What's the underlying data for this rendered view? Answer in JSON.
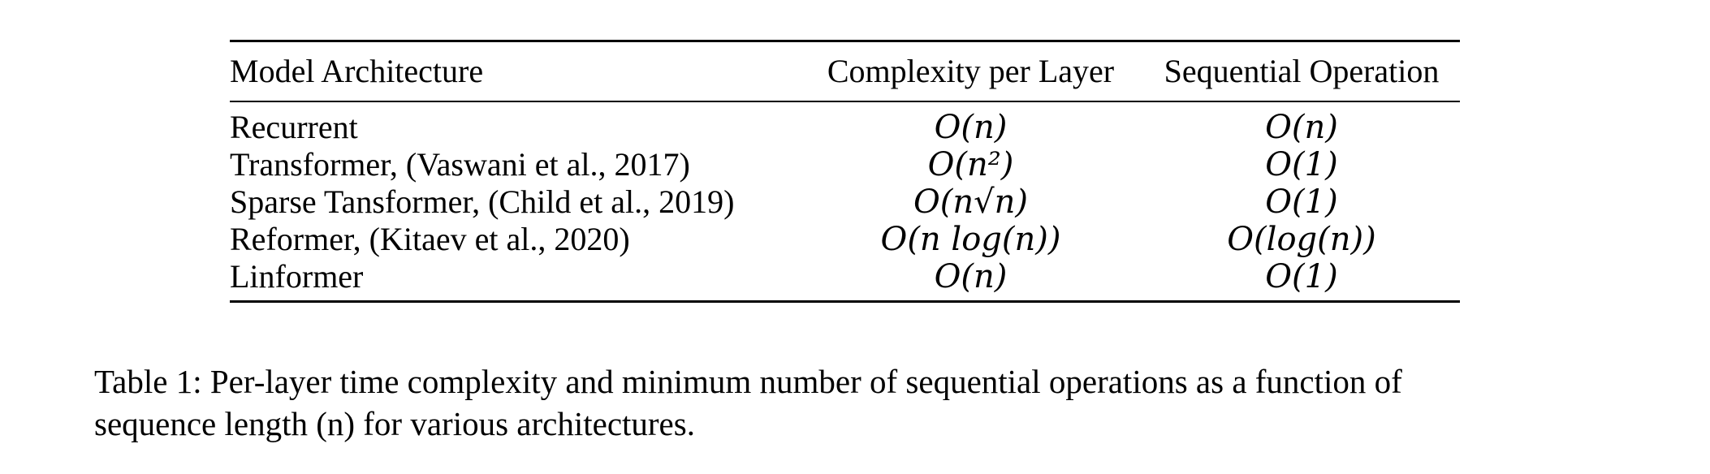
{
  "table": {
    "headers": {
      "model": "Model Architecture",
      "complexity": "Complexity per Layer",
      "sequential": "Sequential Operation"
    },
    "rows": [
      {
        "model": "Recurrent",
        "complexity": "O(n)",
        "sequential": "O(n)"
      },
      {
        "model": "Transformer, (Vaswani et al., 2017)",
        "complexity": "O(n²)",
        "sequential": "O(1)"
      },
      {
        "model": "Sparse Tansformer, (Child et al., 2019)",
        "complexity": "O(n√n)",
        "sequential": "O(1)"
      },
      {
        "model": "Reformer, (Kitaev et al., 2020)",
        "complexity": "O(n log(n))",
        "sequential": "O(log(n))"
      },
      {
        "model": "Linformer",
        "complexity": "O(n)",
        "sequential": "O(1)"
      }
    ]
  },
  "caption": {
    "label": "Table 1:",
    "line1": "Per-layer time complexity and minimum number of sequential operations as a function of",
    "line2": "sequence length (n) for various architectures."
  }
}
